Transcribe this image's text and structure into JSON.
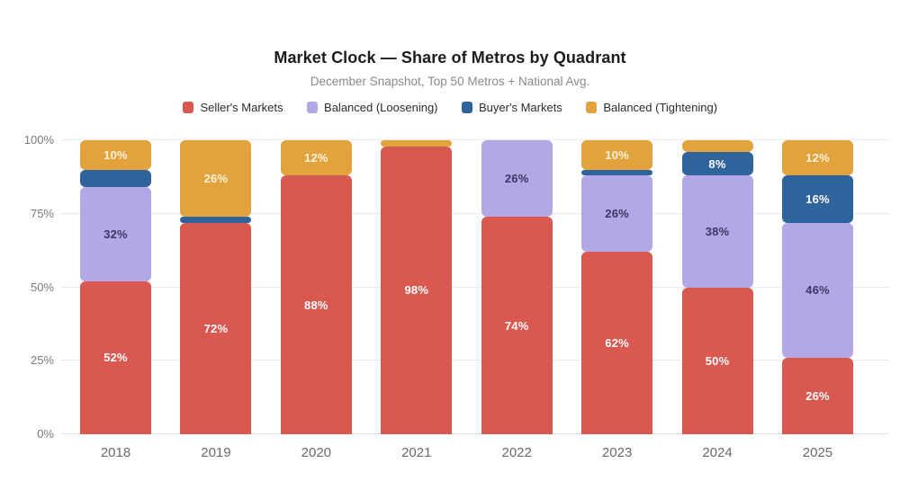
{
  "header": {
    "title": "Market Clock — Share of Metros by Quadrant",
    "subtitle": "December Snapshot, Top 50 Metros + National Avg."
  },
  "chart_data": {
    "type": "bar",
    "stacked": true,
    "title": "Market Clock — Share of Metros by Quadrant",
    "subtitle": "December Snapshot, Top 50 Metros + National Avg.",
    "categories": [
      "2018",
      "2019",
      "2020",
      "2021",
      "2022",
      "2023",
      "2024",
      "2025"
    ],
    "series": [
      {
        "name": "Seller's Markets",
        "color": "#d9584f",
        "label_color": "#ffffff",
        "values": [
          52,
          72,
          88,
          98,
          74,
          62,
          50,
          26
        ]
      },
      {
        "name": "Balanced (Loosening)",
        "color": "#b4a7e5",
        "label_color": "#3d3566",
        "values": [
          32,
          0,
          0,
          0,
          26,
          26,
          38,
          46
        ]
      },
      {
        "name": "Buyer's Markets",
        "color": "#2f639b",
        "label_color": "#ffffff",
        "values": [
          6,
          2,
          0,
          0,
          0,
          2,
          8,
          16
        ]
      },
      {
        "name": "Balanced (Tightening)",
        "color": "#e2a33d",
        "label_color": "#fcf3da",
        "values": [
          10,
          26,
          12,
          2,
          0,
          10,
          4,
          12
        ]
      }
    ],
    "y_ticks": [
      0,
      25,
      50,
      75,
      100
    ],
    "y_tick_suffix": "%",
    "ylim": [
      0,
      100
    ],
    "value_suffix": "%",
    "label_min_value": 8,
    "legend_position": "top",
    "grid": true
  }
}
